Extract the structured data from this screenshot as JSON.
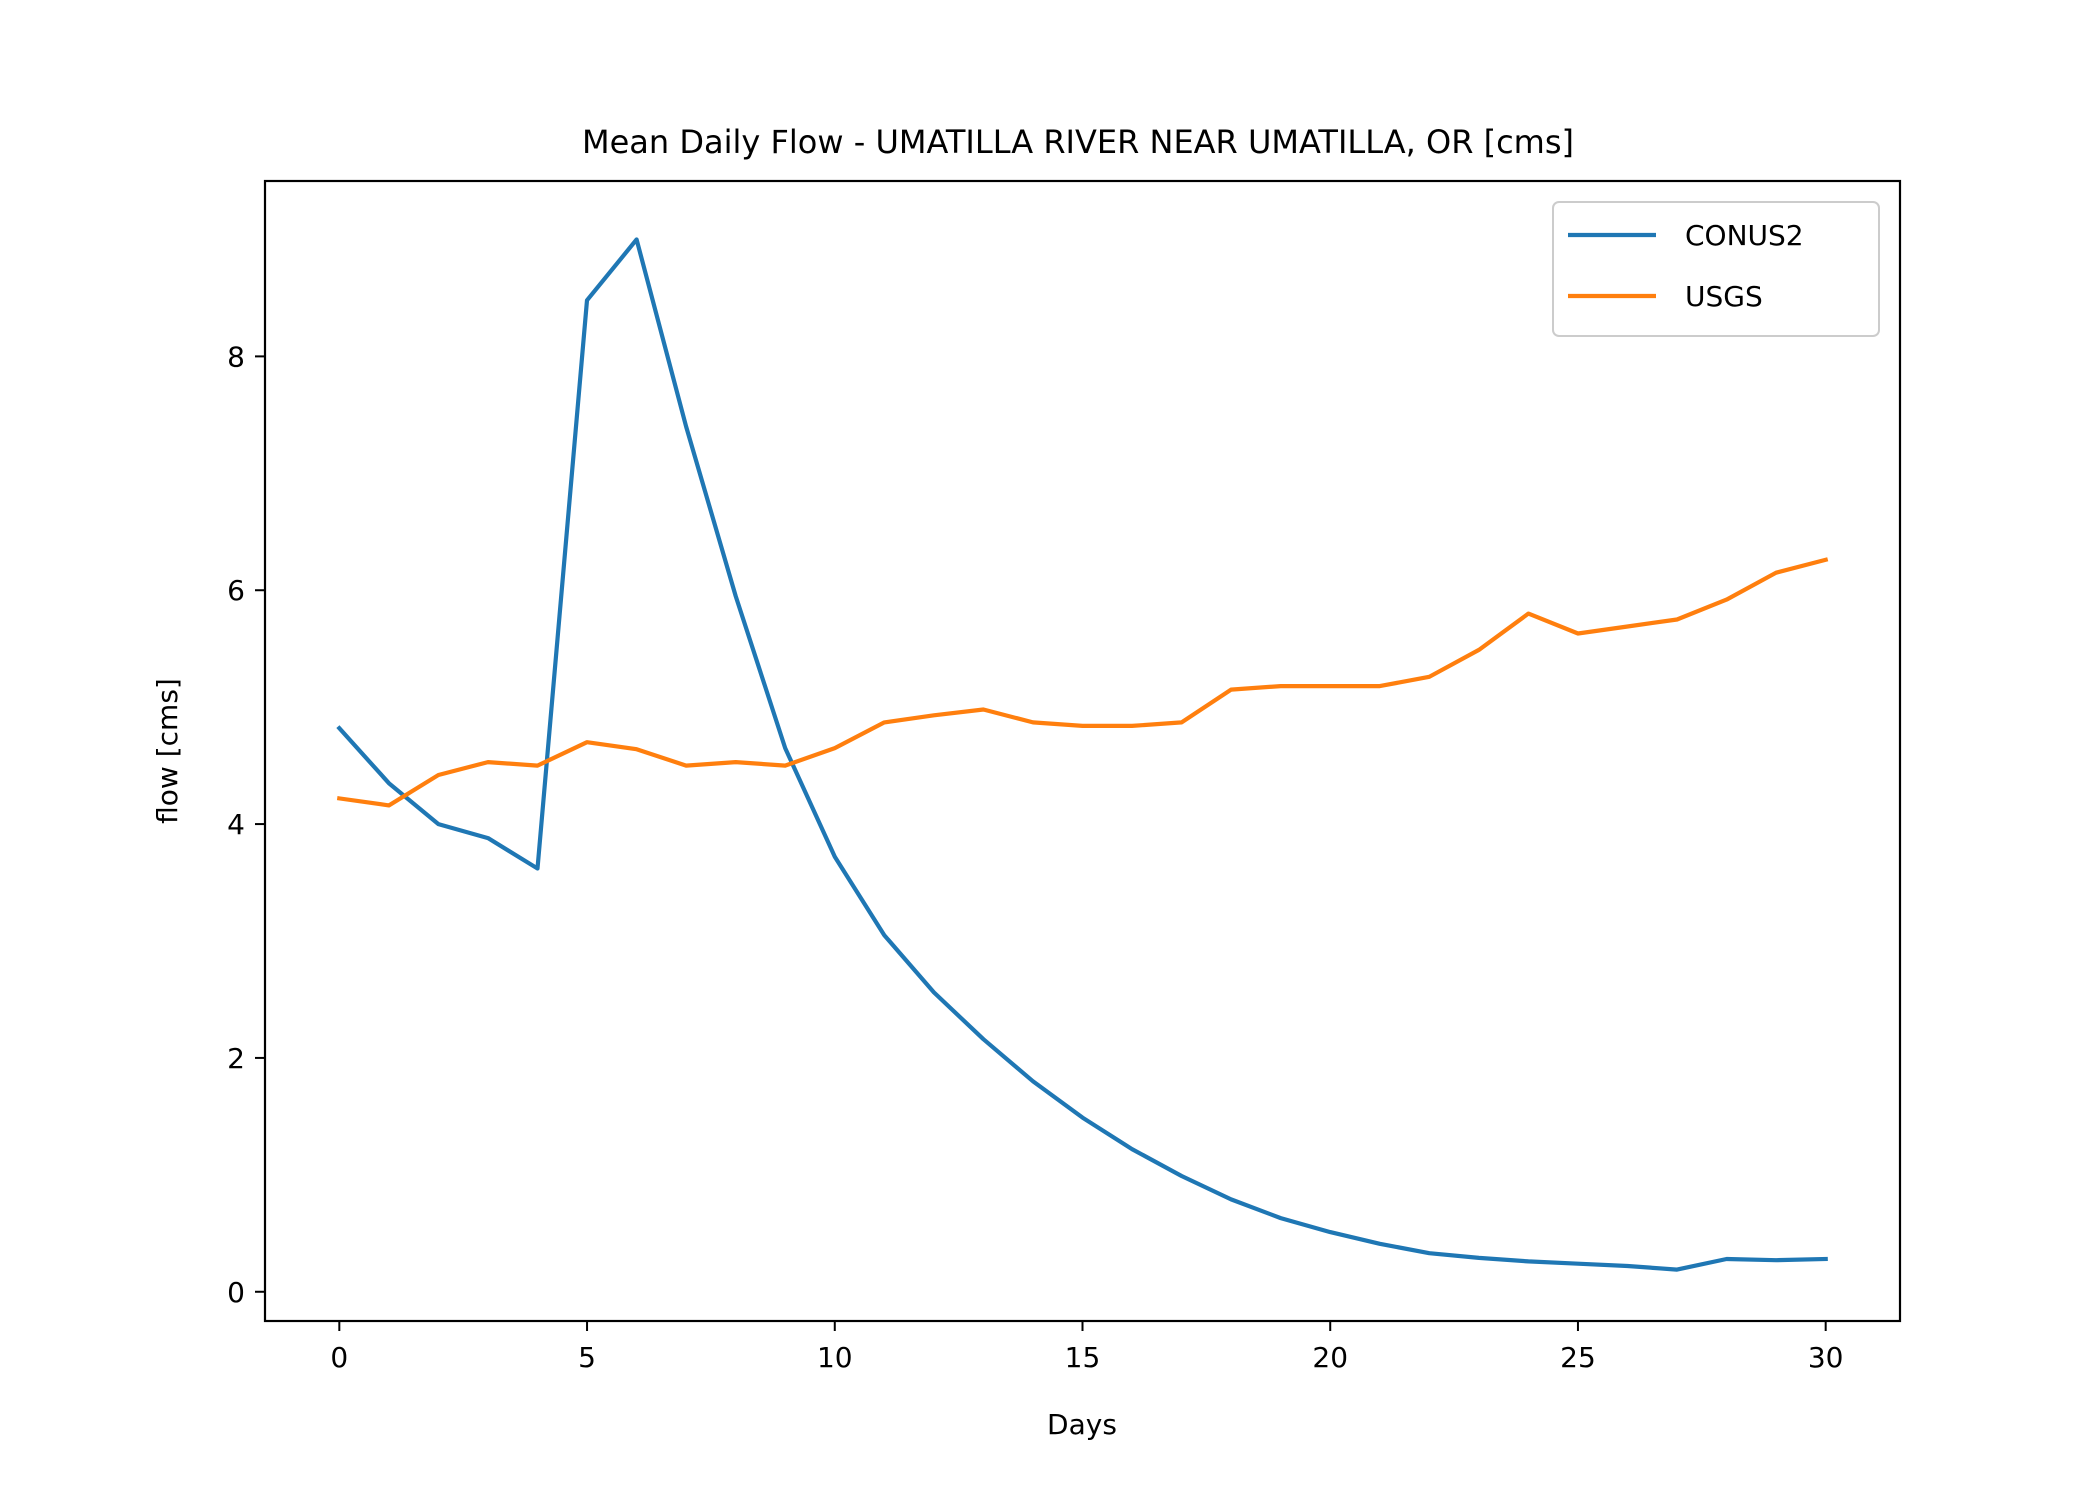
{
  "chart_data": {
    "type": "line",
    "title": "Mean Daily Flow - UMATILLA RIVER NEAR UMATILLA, OR [cms]",
    "xlabel": "Days",
    "ylabel": "flow [cms]",
    "xlim": [
      -1.5,
      31.5
    ],
    "ylim": [
      -0.25,
      9.5
    ],
    "xticks": [
      0,
      5,
      10,
      15,
      20,
      25,
      30
    ],
    "yticks": [
      0,
      2,
      4,
      6,
      8
    ],
    "grid": false,
    "legend": "top-right",
    "x": [
      0,
      1,
      2,
      3,
      4,
      5,
      6,
      7,
      8,
      9,
      10,
      11,
      12,
      13,
      14,
      15,
      16,
      17,
      18,
      19,
      20,
      21,
      22,
      23,
      24,
      25,
      26,
      27,
      28,
      29,
      30
    ],
    "series": [
      {
        "name": "CONUS2",
        "color": "#1f77b4",
        "values": [
          4.82,
          4.35,
          4.0,
          3.88,
          3.62,
          8.48,
          9.0,
          7.4,
          5.95,
          4.65,
          3.72,
          3.05,
          2.56,
          2.16,
          1.8,
          1.49,
          1.22,
          0.99,
          0.79,
          0.63,
          0.51,
          0.41,
          0.33,
          0.29,
          0.26,
          0.24,
          0.22,
          0.19,
          0.28,
          0.27,
          0.28
        ]
      },
      {
        "name": "USGS",
        "color": "#ff7f0e",
        "values": [
          4.22,
          4.16,
          4.42,
          4.53,
          4.5,
          4.7,
          4.64,
          4.5,
          4.53,
          4.5,
          4.65,
          4.87,
          4.93,
          4.98,
          4.87,
          4.84,
          4.84,
          4.87,
          5.15,
          5.18,
          5.18,
          5.18,
          5.26,
          5.49,
          5.8,
          5.63,
          5.69,
          5.75,
          5.92,
          6.15,
          6.26
        ]
      }
    ]
  }
}
